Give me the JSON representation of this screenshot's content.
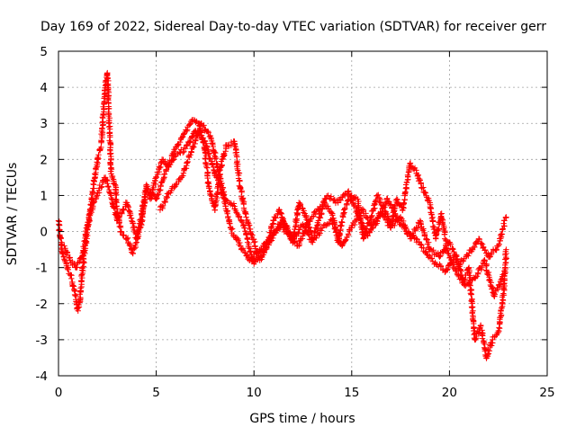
{
  "chart_data": {
    "type": "scatter",
    "title": "Day 169 of 2022, Sidereal Day-to-day VTEC variation (SDTVAR) for receiver gerr",
    "xlabel": "GPS time / hours",
    "ylabel": "SDTVAR / TECUs",
    "xlim": [
      0,
      25
    ],
    "ylim": [
      -4,
      5
    ],
    "x_ticks": [
      "0",
      "5",
      "10",
      "15",
      "20",
      "25"
    ],
    "y_ticks": [
      "-4",
      "-3",
      "-2",
      "-1",
      "0",
      "1",
      "2",
      "3",
      "4",
      "5"
    ],
    "grid": true,
    "marker": "+",
    "series": [
      {
        "name": "SDTVAR",
        "color": "#ff0000",
        "x": [
          0.0,
          0.2,
          0.4,
          0.6,
          0.8,
          1.0,
          1.1,
          1.2,
          1.4,
          1.6,
          1.8,
          2.0,
          2.2,
          2.35,
          2.5,
          2.7,
          2.9,
          3.0,
          3.2,
          3.5,
          3.8,
          4.0,
          4.3,
          4.5,
          4.7,
          5.0,
          5.3,
          5.6,
          6.0,
          6.3,
          6.6,
          6.9,
          7.2,
          7.5,
          7.7,
          8.0,
          8.3,
          8.6,
          9.0,
          9.3,
          9.6,
          10.0,
          10.3,
          10.6,
          11.0,
          11.3,
          11.6,
          12.0,
          12.3,
          12.6,
          13.0,
          13.3,
          13.6,
          14.0,
          14.3,
          14.6,
          15.0,
          15.3,
          15.6,
          16.0,
          16.3,
          16.6,
          17.0,
          17.3,
          17.6,
          18.0,
          18.3,
          18.6,
          19.0,
          19.3,
          19.6,
          19.9,
          20.1,
          20.4,
          20.7,
          21.0,
          21.3,
          21.6,
          21.9,
          22.2,
          22.5,
          22.8,
          22.9
        ],
        "y": [
          0.3,
          -0.6,
          -0.9,
          -1.2,
          -1.6,
          -2.2,
          -1.9,
          -1.2,
          -0.3,
          0.5,
          1.3,
          2.0,
          2.5,
          3.8,
          4.4,
          1.6,
          1.3,
          0.5,
          0.0,
          -0.2,
          -0.6,
          -0.3,
          0.4,
          1.3,
          0.9,
          1.5,
          2.0,
          1.8,
          2.3,
          2.6,
          2.9,
          3.1,
          3.0,
          2.2,
          1.2,
          0.6,
          1.8,
          2.4,
          2.5,
          1.2,
          0.4,
          -0.3,
          -0.8,
          -0.5,
          0.3,
          0.6,
          0.1,
          -0.3,
          0.8,
          0.5,
          -0.2,
          0.3,
          0.8,
          0.5,
          -0.3,
          0.6,
          1.0,
          0.9,
          -0.2,
          0.4,
          1.0,
          0.7,
          0.2,
          0.9,
          0.6,
          1.9,
          1.7,
          1.2,
          0.8,
          -0.2,
          0.5,
          -0.6,
          -0.8,
          -1.2,
          -1.4,
          -1.0,
          -3.0,
          -2.6,
          -3.5,
          -3.0,
          -2.8,
          -1.6,
          -0.5
        ]
      },
      {
        "name": "SDTVAR",
        "color": "#ff0000",
        "x": [
          0.3,
          0.6,
          0.9,
          1.2,
          1.5,
          1.8,
          2.1,
          2.4,
          2.7,
          3.0,
          3.5,
          4.0,
          4.5,
          5.0,
          5.5,
          6.0,
          6.5,
          7.0,
          7.5,
          8.0,
          8.5,
          9.0,
          9.5,
          10.0,
          10.5,
          11.0,
          11.5,
          12.0,
          12.5,
          13.0,
          13.5,
          14.0,
          14.5,
          15.0,
          15.5,
          16.0,
          16.5,
          17.0,
          17.5,
          18.0,
          18.5,
          19.0,
          19.5,
          20.0,
          20.5,
          21.0,
          21.5,
          22.0,
          22.5,
          22.9
        ],
        "y": [
          -0.4,
          -0.8,
          -1.0,
          -0.7,
          0.2,
          0.8,
          1.2,
          1.5,
          1.0,
          0.3,
          0.8,
          -0.2,
          1.2,
          0.9,
          1.7,
          2.1,
          2.3,
          2.8,
          2.5,
          1.6,
          0.9,
          0.7,
          0.1,
          -0.9,
          -0.5,
          -0.1,
          0.3,
          -0.2,
          0.2,
          -0.3,
          0.1,
          0.3,
          -0.4,
          0.1,
          0.6,
          0.2,
          0.5,
          0.1,
          0.4,
          -0.2,
          0.3,
          -0.5,
          -0.7,
          -0.3,
          -0.9,
          -0.6,
          -0.2,
          -0.7,
          -0.4,
          0.4
        ]
      },
      {
        "name": "SDTVAR",
        "color": "#ff0000",
        "x": [
          5.2,
          5.8,
          6.3,
          6.8,
          7.3,
          7.8,
          8.3,
          8.8,
          9.3,
          9.8,
          10.3,
          10.8,
          11.3,
          11.8,
          12.3,
          12.8,
          13.3,
          13.8,
          14.3,
          14.8,
          15.3,
          15.8,
          16.3,
          16.8,
          17.3,
          17.8,
          18.3,
          18.8,
          19.3,
          19.8,
          20.3,
          20.8,
          21.3,
          21.8,
          22.3,
          22.8
        ],
        "y": [
          0.6,
          1.2,
          1.5,
          2.2,
          3.0,
          2.6,
          1.4,
          0.1,
          -0.4,
          -0.8,
          -0.5,
          -0.2,
          0.2,
          -0.1,
          -0.4,
          0.3,
          0.6,
          1.0,
          0.8,
          1.1,
          0.5,
          -0.1,
          0.3,
          0.9,
          0.4,
          0.0,
          -0.2,
          -0.6,
          -0.9,
          -1.1,
          -0.7,
          -1.5,
          -1.3,
          -0.8,
          -1.8,
          -1.1
        ]
      }
    ]
  }
}
